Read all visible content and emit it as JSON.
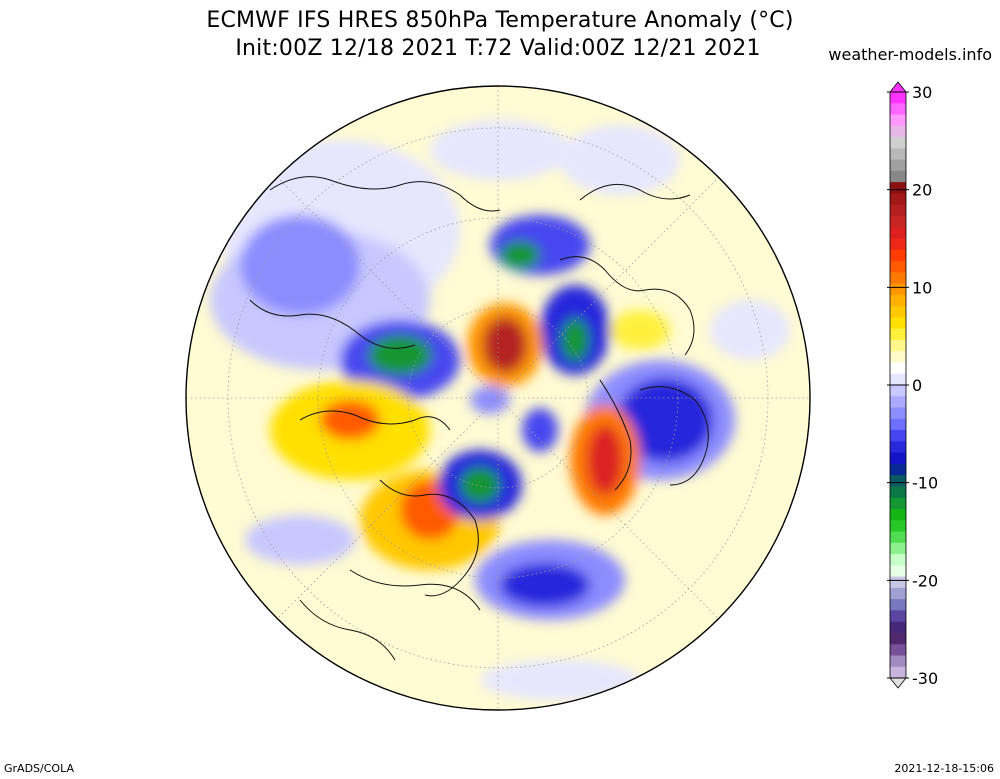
{
  "title": {
    "line1": "ECMWF IFS HRES 850hPa Temperature Anomaly (°C)",
    "line2": "Init:00Z 12/18 2021 T:72 Valid:00Z 12/21 2021"
  },
  "source": "weather-models.info",
  "footer": {
    "left": "GrADS/COLA",
    "right": "2021-12-18-15:06"
  },
  "colorbar": {
    "unit": "°C",
    "min": -30,
    "max": 30,
    "tick_labels": [
      "30",
      "20",
      "10",
      "0",
      "-10",
      "-20",
      "-30"
    ],
    "tick_values": [
      30,
      20,
      10,
      0,
      -10,
      -20,
      -30
    ],
    "colors_top_to_bottom": [
      "#ff33ff",
      "#ff66ff",
      "#ff99ff",
      "#e7b8e7",
      "#d0d0d0",
      "#b8b8b8",
      "#a0a0a0",
      "#888888",
      "#8c1010",
      "#a01818",
      "#b42020",
      "#c82424",
      "#dc2020",
      "#f02818",
      "#ff3c00",
      "#ff5a00",
      "#ff7a00",
      "#ff9600",
      "#ffb000",
      "#ffc800",
      "#ffe000",
      "#fff03c",
      "#fff78c",
      "#fffbc8",
      "#ffffff",
      "#e6e6ff",
      "#c8c8ff",
      "#aaaaff",
      "#8c8cff",
      "#6e6eff",
      "#4646f0",
      "#2828dc",
      "#1414c8",
      "#0a2896",
      "#0a5a64",
      "#0a7846",
      "#149632",
      "#14b414",
      "#28c828",
      "#50dc50",
      "#8cf08c",
      "#c8ffc8",
      "#e6ffe6",
      "#c8c8e6",
      "#a0a0d2",
      "#7878be",
      "#5a46a0",
      "#462878",
      "#50286e",
      "#78509a",
      "#a08cbe",
      "#c8b4dc"
    ]
  }
}
